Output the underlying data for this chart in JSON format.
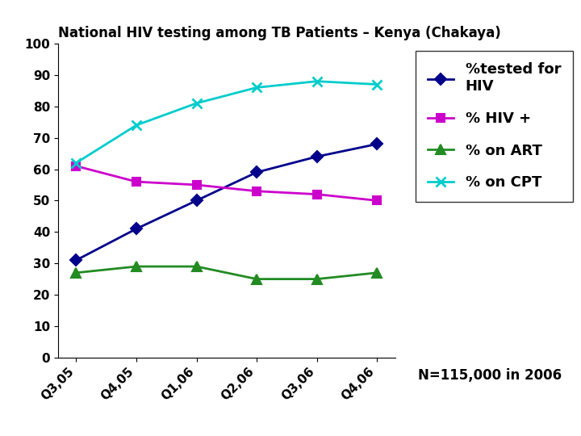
{
  "title": "National HIV testing among TB Patients – Kenya (Chakaya)",
  "categories": [
    "Q3,05",
    "Q4,05",
    "Q1,06",
    "Q2,06",
    "Q3,06",
    "Q4,06"
  ],
  "series": [
    {
      "label": "%tested for\nHIV",
      "values": [
        31,
        41,
        50,
        59,
        64,
        68
      ],
      "color": "#00008B",
      "marker": "D",
      "markersize": 7,
      "linewidth": 2.0
    },
    {
      "label": "% HIV +",
      "values": [
        61,
        56,
        55,
        53,
        52,
        50
      ],
      "color": "#CC00CC",
      "marker": "s",
      "markersize": 7,
      "linewidth": 2.0
    },
    {
      "label": "% on ART",
      "values": [
        27,
        29,
        29,
        25,
        25,
        27
      ],
      "color": "#228B22",
      "marker": "^",
      "markersize": 8,
      "linewidth": 2.0
    },
    {
      "label": "% on CPT",
      "values": [
        62,
        74,
        81,
        86,
        88,
        87
      ],
      "color": "#00CCCC",
      "marker": "x",
      "markersize": 9,
      "linewidth": 2.0,
      "markeredgewidth": 2.0
    }
  ],
  "ylim": [
    0,
    100
  ],
  "yticks": [
    0,
    10,
    20,
    30,
    40,
    50,
    60,
    70,
    80,
    90,
    100
  ],
  "annotation": "N=115,000 in 2006",
  "background_color": "#ffffff",
  "title_fontsize": 12,
  "tick_fontsize": 11,
  "legend_fontsize": 13,
  "annotation_fontsize": 12
}
